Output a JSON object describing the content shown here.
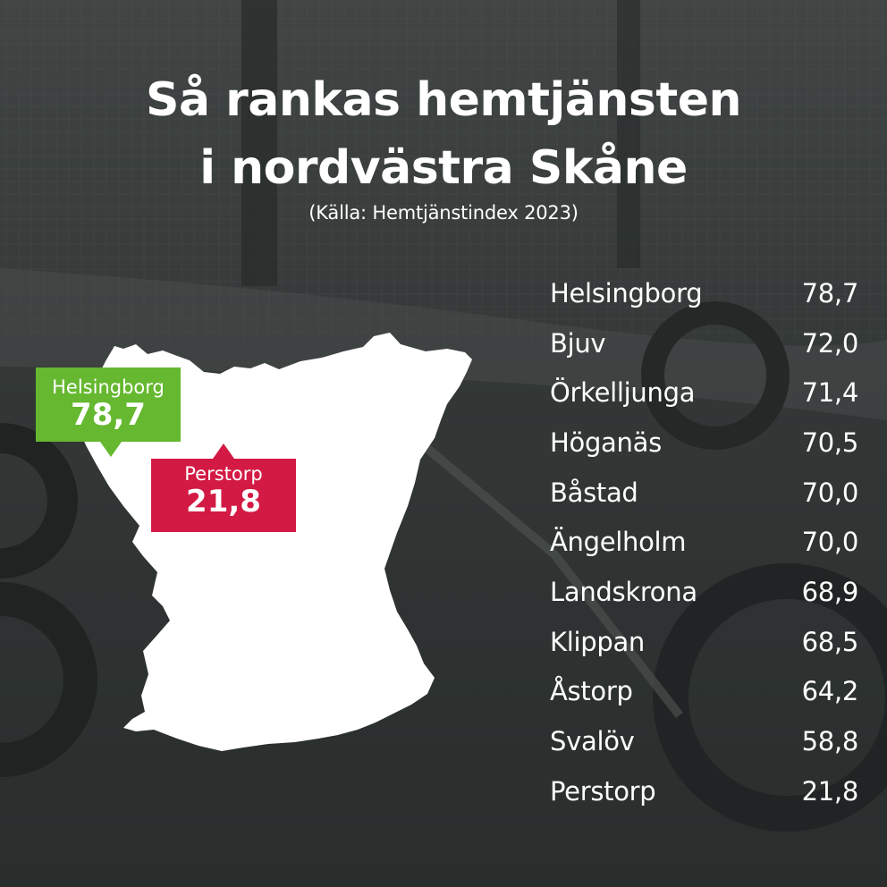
{
  "title_line1": "Så rankas hemtjänsten",
  "title_line2": "i nordvästra Skåne",
  "source": "(Källa: Hemtjänstindex 2023)",
  "callouts": {
    "highest": {
      "name": "Helsingborg",
      "value": "78,7",
      "color": "#65b82f"
    },
    "lowest": {
      "name": "Perstorp",
      "value": "21,8",
      "color": "#d31a44"
    }
  },
  "ranking": [
    {
      "name": "Helsingborg",
      "value": "78,7"
    },
    {
      "name": "Bjuv",
      "value": "72,0"
    },
    {
      "name": "Örkelljunga",
      "value": "71,4"
    },
    {
      "name": "Höganäs",
      "value": "70,5"
    },
    {
      "name": "Båstad",
      "value": "70,0"
    },
    {
      "name": "Ängelholm",
      "value": "70,0"
    },
    {
      "name": "Landskrona",
      "value": "68,9"
    },
    {
      "name": "Klippan",
      "value": "68,5"
    },
    {
      "name": "Åstorp",
      "value": "64,2"
    },
    {
      "name": "Svalöv",
      "value": "58,8"
    },
    {
      "name": "Perstorp",
      "value": "21,8"
    }
  ]
}
